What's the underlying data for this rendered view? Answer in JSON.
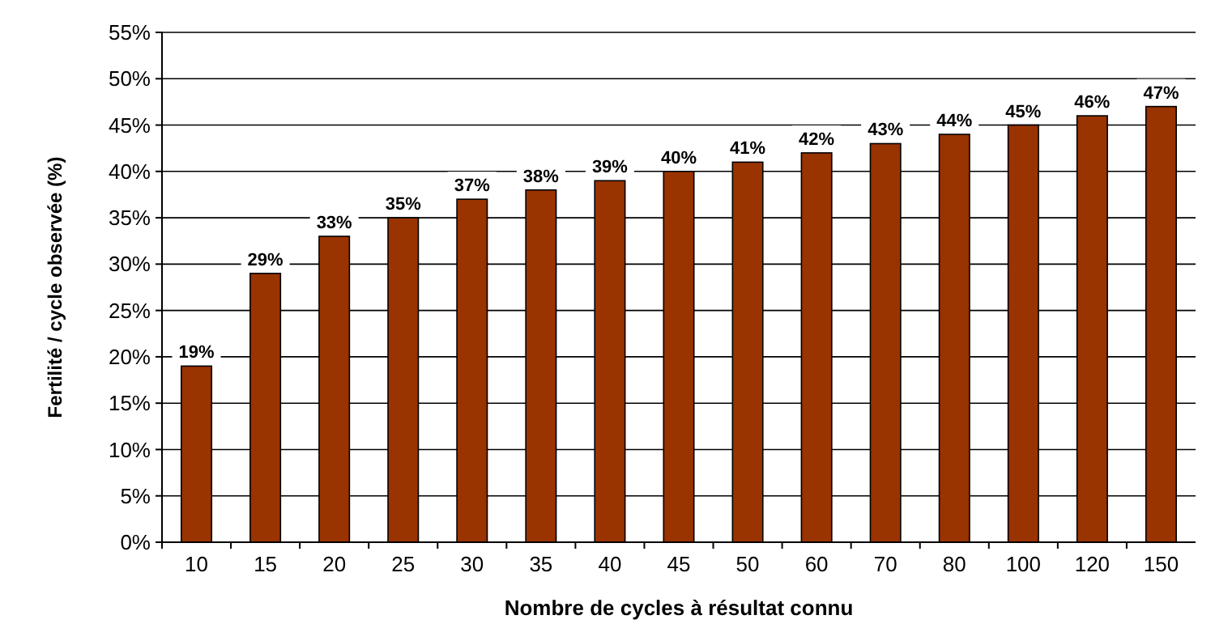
{
  "chart_data": {
    "type": "bar",
    "xlabel": "Nombre de cycles à résultat connu",
    "ylabel": "Fertilité / cycle observée (%)",
    "categories": [
      "10",
      "15",
      "20",
      "25",
      "30",
      "35",
      "40",
      "45",
      "50",
      "60",
      "70",
      "80",
      "100",
      "120",
      "150"
    ],
    "values": [
      19,
      29,
      33,
      35,
      37,
      38,
      39,
      40,
      41,
      42,
      43,
      44,
      45,
      46,
      47
    ],
    "value_labels": [
      "19%",
      "29%",
      "33%",
      "35%",
      "37%",
      "38%",
      "39%",
      "40%",
      "41%",
      "42%",
      "43%",
      "44%",
      "45%",
      "46%",
      "47%"
    ],
    "color": "#993300",
    "ylim": [
      0,
      55
    ],
    "yticks": [
      {
        "value": 0,
        "label": "0%"
      },
      {
        "value": 5,
        "label": "5%"
      },
      {
        "value": 10,
        "label": "10%"
      },
      {
        "value": 15,
        "label": "15%"
      },
      {
        "value": 20,
        "label": "20%"
      },
      {
        "value": 25,
        "label": "25%"
      },
      {
        "value": 30,
        "label": "30%"
      },
      {
        "value": 35,
        "label": "35%"
      },
      {
        "value": 40,
        "label": "40%"
      },
      {
        "value": 45,
        "label": "45%"
      },
      {
        "value": 50,
        "label": "50%"
      },
      {
        "value": 55,
        "label": "55%"
      }
    ],
    "grid": "y"
  }
}
